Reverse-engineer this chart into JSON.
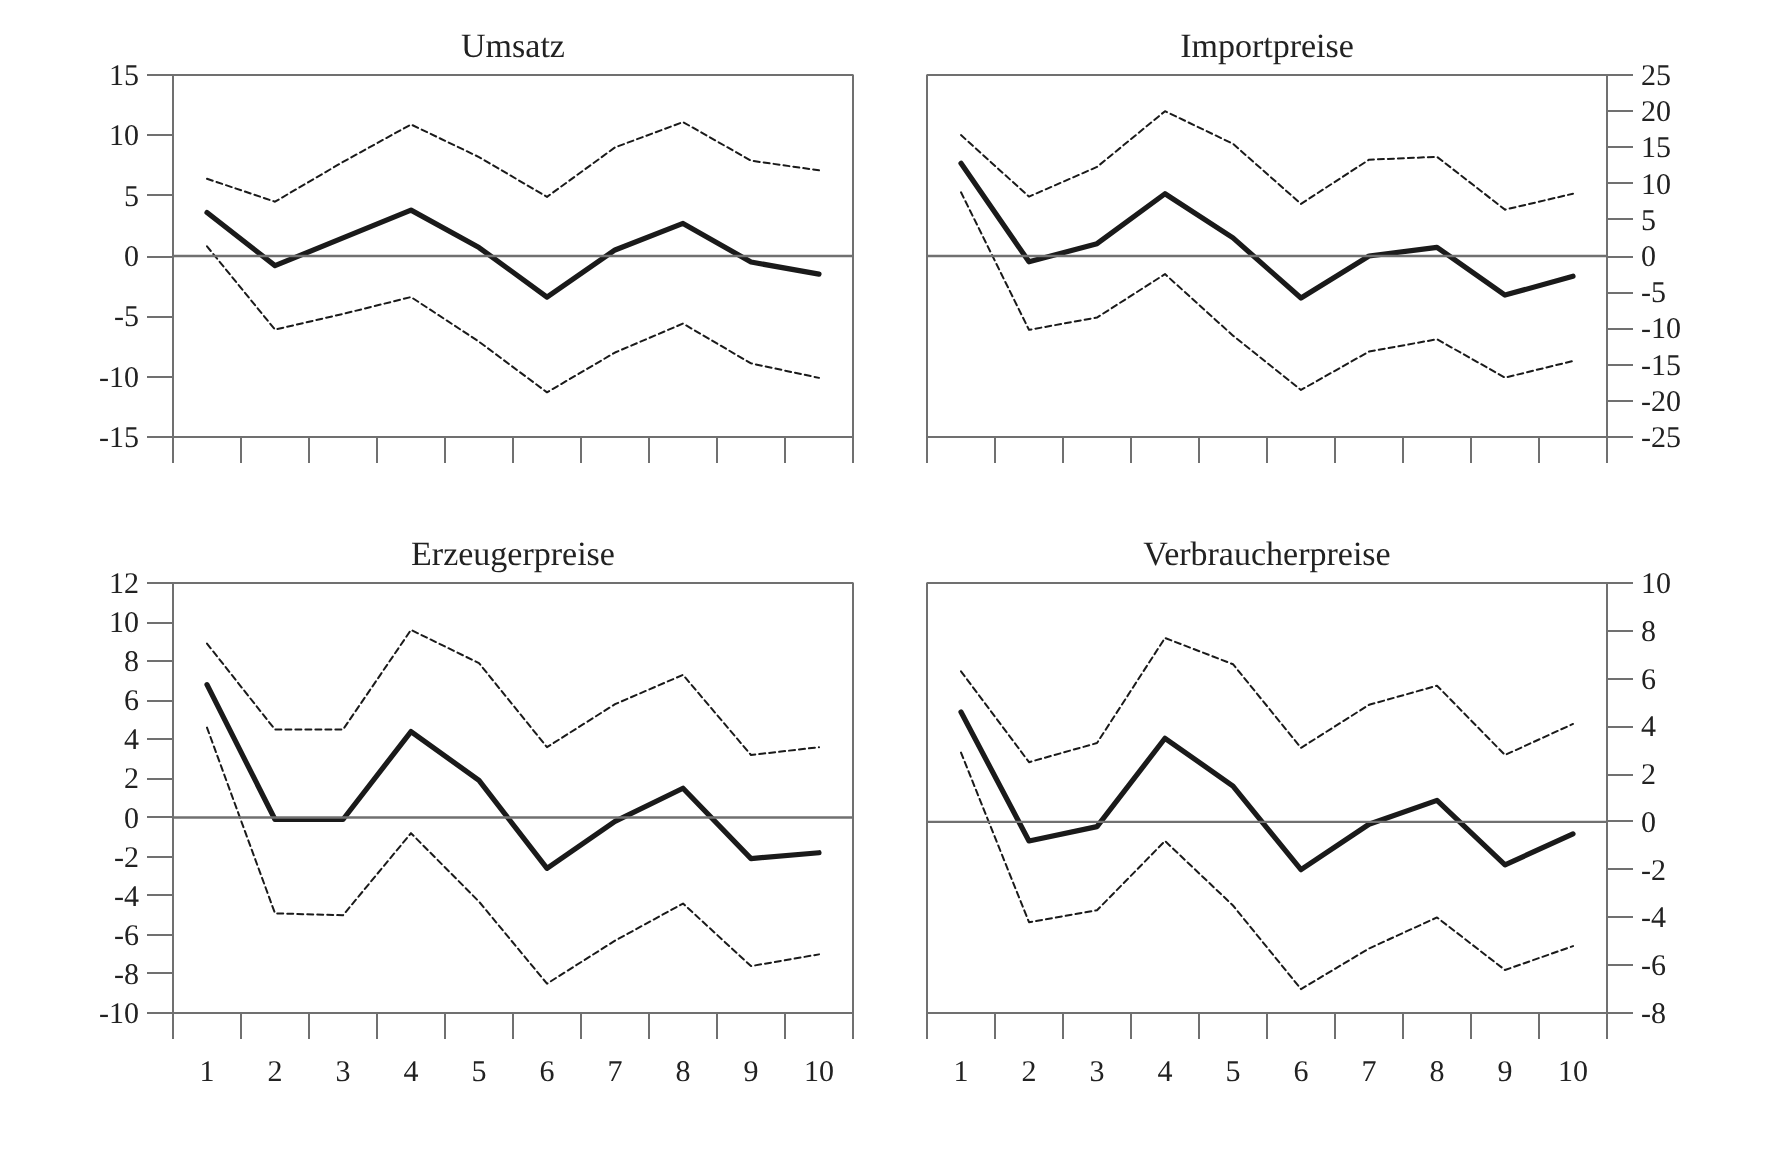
{
  "chart_data": [
    {
      "type": "line",
      "title": "Umsatz",
      "xlim": [
        0.5,
        10.5
      ],
      "xticks": [
        {
          "value": 0.5,
          "label": null
        },
        {
          "value": 1.5,
          "label": null
        },
        {
          "value": 2.5,
          "label": null
        },
        {
          "value": 3.5,
          "label": null
        },
        {
          "value": 4.5,
          "label": null
        },
        {
          "value": 5.5,
          "label": null
        },
        {
          "value": 6.5,
          "label": null
        },
        {
          "value": 7.5,
          "label": null
        },
        {
          "value": 8.5,
          "label": null
        },
        {
          "value": 9.5,
          "label": null
        },
        {
          "value": 10.5,
          "label": null
        }
      ],
      "x": [
        1,
        2,
        3,
        4,
        5,
        6,
        7,
        8,
        9,
        10
      ],
      "ylim": [
        -15,
        15
      ],
      "yticks": [
        -15,
        -10,
        -5,
        0,
        5,
        10,
        15
      ],
      "tick_labels": "y",
      "marker": "none",
      "ref_lines": [
        {
          "axis": "y",
          "value": 0,
          "label": null,
          "color": "#707070"
        }
      ],
      "series": [
        {
          "color": "#1a1a1a",
          "line_style": "dashed",
          "values": [
            6.4,
            4.5,
            7.8,
            10.9,
            8.2,
            4.9,
            9,
            11.1,
            7.9,
            7.1
          ]
        },
        {
          "color": "#1a1a1a",
          "line_style": "solid",
          "values": [
            3.6,
            -0.8,
            1.5,
            3.8,
            0.7,
            -3.4,
            0.5,
            2.7,
            -0.5,
            -1.5
          ]
        },
        {
          "color": "#1a1a1a",
          "line_style": "dashed",
          "values": [
            0.8,
            -6.1,
            -4.8,
            -3.4,
            -7.1,
            -11.3,
            -8,
            -5.6,
            -8.9,
            -10.1
          ]
        }
      ]
    },
    {
      "type": "line",
      "title": "Importpreise",
      "xlim": [
        0.5,
        10.5
      ],
      "xticks": [
        {
          "value": 0.5,
          "label": null
        },
        {
          "value": 1.5,
          "label": null
        },
        {
          "value": 2.5,
          "label": null
        },
        {
          "value": 3.5,
          "label": null
        },
        {
          "value": 4.5,
          "label": null
        },
        {
          "value": 5.5,
          "label": null
        },
        {
          "value": 6.5,
          "label": null
        },
        {
          "value": 7.5,
          "label": null
        },
        {
          "value": 8.5,
          "label": null
        },
        {
          "value": 9.5,
          "label": null
        },
        {
          "value": 10.5,
          "label": null
        }
      ],
      "x": [
        1,
        2,
        3,
        4,
        5,
        6,
        7,
        8,
        9,
        10
      ],
      "y2lim": [
        -25,
        25
      ],
      "y2ticks": [
        -25,
        -20,
        -15,
        -10,
        -5,
        0,
        5,
        10,
        15,
        20,
        25
      ],
      "tick_labels": "y",
      "marker": "none",
      "ref_lines": [
        {
          "axis": "y2",
          "value": 0,
          "label": null,
          "color": "#707070"
        }
      ],
      "series": [
        {
          "color": "#1a1a1a",
          "line_style": "dashed",
          "axis": "y2",
          "values": [
            16.7,
            8.2,
            12.3,
            20,
            15.5,
            7.2,
            13.3,
            13.7,
            6.4,
            8.6
          ]
        },
        {
          "color": "#1a1a1a",
          "line_style": "solid",
          "axis": "y2",
          "values": [
            12.8,
            -0.8,
            1.7,
            8.6,
            2.5,
            -5.8,
            0,
            1.2,
            -5.4,
            -2.8
          ]
        },
        {
          "color": "#1a1a1a",
          "line_style": "dashed",
          "axis": "y2",
          "values": [
            8.8,
            -10.2,
            -8.5,
            -2.5,
            -11,
            -18.5,
            -13.2,
            -11.5,
            -16.8,
            -14.5
          ]
        }
      ]
    },
    {
      "type": "line",
      "title": "Erzeugerpreise",
      "xlim": [
        0.5,
        10.5
      ],
      "xticks": [
        {
          "value": 0.5,
          "label": null
        },
        {
          "value": 1,
          "label": "1"
        },
        {
          "value": 1.5,
          "label": null
        },
        {
          "value": 2,
          "label": "2"
        },
        {
          "value": 2.5,
          "label": null
        },
        {
          "value": 3,
          "label": "3"
        },
        {
          "value": 3.5,
          "label": null
        },
        {
          "value": 4,
          "label": "4"
        },
        {
          "value": 4.5,
          "label": null
        },
        {
          "value": 5,
          "label": "5"
        },
        {
          "value": 5.5,
          "label": null
        },
        {
          "value": 6,
          "label": "6"
        },
        {
          "value": 6.5,
          "label": null
        },
        {
          "value": 7,
          "label": "7"
        },
        {
          "value": 7.5,
          "label": null
        },
        {
          "value": 8,
          "label": "8"
        },
        {
          "value": 8.5,
          "label": null
        },
        {
          "value": 9,
          "label": "9"
        },
        {
          "value": 9.5,
          "label": null
        },
        {
          "value": 10,
          "label": "10"
        },
        {
          "value": 10.5,
          "label": null
        }
      ],
      "x": [
        1,
        2,
        3,
        4,
        5,
        6,
        7,
        8,
        9,
        10
      ],
      "ylim": [
        -10,
        12
      ],
      "yticks": [
        -10,
        -8,
        -6,
        -4,
        -2,
        0,
        2,
        4,
        6,
        8,
        10,
        12
      ],
      "marker": "none",
      "ref_lines": [
        {
          "axis": "y",
          "value": 0,
          "label": null,
          "color": "#707070"
        }
      ],
      "series": [
        {
          "color": "#1a1a1a",
          "line_style": "dashed",
          "values": [
            8.9,
            4.5,
            4.5,
            9.6,
            7.9,
            3.6,
            5.8,
            7.3,
            3.2,
            3.6
          ]
        },
        {
          "color": "#1a1a1a",
          "line_style": "solid",
          "values": [
            6.8,
            -0.1,
            -0.1,
            4.4,
            1.9,
            -2.6,
            -0.2,
            1.5,
            -2.1,
            -1.8
          ]
        },
        {
          "color": "#1a1a1a",
          "line_style": "dashed",
          "values": [
            4.6,
            -4.9,
            -5,
            -0.8,
            -4.3,
            -8.5,
            -6.3,
            -4.4,
            -7.6,
            -7
          ]
        }
      ]
    },
    {
      "type": "line",
      "title": "Verbraucherpreise",
      "xlim": [
        0.5,
        10.5
      ],
      "xticks": [
        {
          "value": 0.5,
          "label": null
        },
        {
          "value": 1,
          "label": "1"
        },
        {
          "value": 1.5,
          "label": null
        },
        {
          "value": 2,
          "label": "2"
        },
        {
          "value": 2.5,
          "label": null
        },
        {
          "value": 3,
          "label": "3"
        },
        {
          "value": 3.5,
          "label": null
        },
        {
          "value": 4,
          "label": "4"
        },
        {
          "value": 4.5,
          "label": null
        },
        {
          "value": 5,
          "label": "5"
        },
        {
          "value": 5.5,
          "label": null
        },
        {
          "value": 6,
          "label": "6"
        },
        {
          "value": 6.5,
          "label": null
        },
        {
          "value": 7,
          "label": "7"
        },
        {
          "value": 7.5,
          "label": null
        },
        {
          "value": 8,
          "label": "8"
        },
        {
          "value": 8.5,
          "label": null
        },
        {
          "value": 9,
          "label": "9"
        },
        {
          "value": 9.5,
          "label": null
        },
        {
          "value": 10,
          "label": "10"
        },
        {
          "value": 10.5,
          "label": null
        }
      ],
      "x": [
        1,
        2,
        3,
        4,
        5,
        6,
        7,
        8,
        9,
        10
      ],
      "y2lim": [
        -8,
        10
      ],
      "y2ticks": [
        -8,
        -6,
        -4,
        -2,
        0,
        2,
        4,
        6,
        8,
        10
      ],
      "marker": "none",
      "ref_lines": [
        {
          "axis": "y2",
          "value": 0,
          "label": null,
          "color": "#707070"
        }
      ],
      "series": [
        {
          "color": "#1a1a1a",
          "line_style": "dashed",
          "axis": "y2",
          "values": [
            6.3,
            2.5,
            3.3,
            7.7,
            6.6,
            3.1,
            4.9,
            5.7,
            2.8,
            4.1
          ]
        },
        {
          "color": "#1a1a1a",
          "line_style": "solid",
          "axis": "y2",
          "values": [
            4.6,
            -0.8,
            -0.2,
            3.5,
            1.5,
            -2,
            -0.1,
            0.9,
            -1.8,
            -0.5
          ]
        },
        {
          "color": "#1a1a1a",
          "line_style": "dashed",
          "axis": "y2",
          "values": [
            2.9,
            -4.2,
            -3.7,
            -0.8,
            -3.5,
            -7,
            -5.3,
            -4,
            -6.2,
            -5.2
          ]
        }
      ]
    }
  ]
}
